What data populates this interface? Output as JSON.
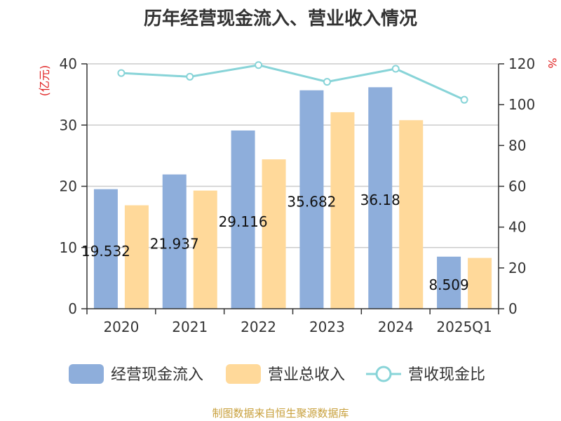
{
  "chart_data": {
    "type": "bar",
    "title": "历年经营现金流入、营业收入情况",
    "categories": [
      "2020",
      "2021",
      "2022",
      "2023",
      "2024",
      "2025Q1"
    ],
    "series": [
      {
        "name": "经营现金流入",
        "kind": "bar",
        "axis": "left",
        "color": "#8eaedb",
        "values": [
          19.532,
          21.937,
          29.116,
          35.682,
          36.18,
          8.509
        ],
        "labels": [
          "19.532",
          "21.937",
          "29.116",
          "35.682",
          "36.18",
          "8.509"
        ]
      },
      {
        "name": "营业总收入",
        "kind": "bar",
        "axis": "left",
        "color": "#ffd99a",
        "values": [
          16.9,
          19.3,
          24.4,
          32.1,
          30.8,
          8.3
        ]
      },
      {
        "name": "营收现金比",
        "kind": "line",
        "axis": "right",
        "color": "#88d4d8",
        "values": [
          115.5,
          113.7,
          119.4,
          111.2,
          117.6,
          102.4
        ]
      }
    ],
    "y_left": {
      "unit": "(亿元)",
      "min": 0,
      "max": 40,
      "ticks": [
        0,
        10,
        20,
        30,
        40
      ]
    },
    "y_right": {
      "unit": "%",
      "min": 0,
      "max": 120,
      "ticks": [
        0,
        20,
        40,
        60,
        80,
        100,
        120
      ]
    },
    "grid": true,
    "legend_position": "bottom"
  },
  "source": "制图数据来自恒生聚源数据库"
}
